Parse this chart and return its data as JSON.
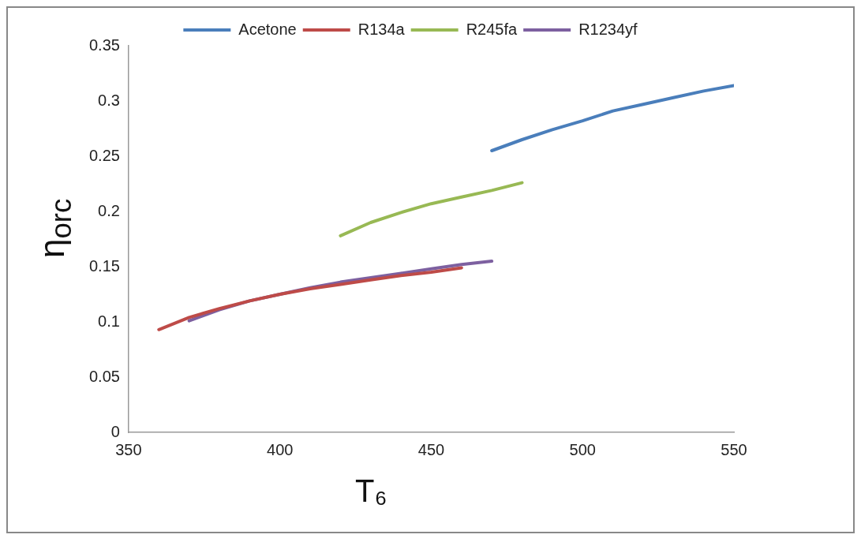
{
  "chart_data": {
    "type": "line",
    "xlabel": "T₆",
    "ylabel": "η$_{orc}$",
    "xlim": [
      350,
      550
    ],
    "xticks": [
      350,
      400,
      450,
      500,
      550
    ],
    "ylim": [
      0,
      0.35
    ],
    "yticks": [
      0,
      0.05,
      0.1,
      0.15,
      0.2,
      0.25,
      0.3,
      0.35
    ],
    "grid": false,
    "legend": "top",
    "marker": "none",
    "line_style": "solid",
    "series": [
      {
        "name": "Acetone",
        "color": "#4a7ebb",
        "x": [
          470,
          480,
          490,
          500,
          510,
          520,
          530,
          540,
          550
        ],
        "values": [
          0.255,
          0.265,
          0.274,
          0.282,
          0.291,
          0.297,
          0.303,
          0.309,
          0.314
        ]
      },
      {
        "name": "R134a",
        "color": "#be4b48",
        "x": [
          360,
          370,
          380,
          390,
          400,
          410,
          420,
          430,
          440,
          450,
          460
        ],
        "values": [
          0.093,
          0.104,
          0.112,
          0.119,
          0.125,
          0.13,
          0.134,
          0.138,
          0.142,
          0.145,
          0.149
        ]
      },
      {
        "name": "R245fa",
        "color": "#98b954",
        "x": [
          420,
          430,
          440,
          450,
          460,
          470,
          480
        ],
        "values": [
          0.178,
          0.19,
          0.199,
          0.207,
          0.213,
          0.219,
          0.226
        ]
      },
      {
        "name": "R1234yf",
        "color": "#7d60a0",
        "x": [
          370,
          380,
          390,
          400,
          410,
          420,
          430,
          440,
          450,
          460,
          470
        ],
        "values": [
          0.101,
          0.111,
          0.119,
          0.125,
          0.131,
          0.136,
          0.14,
          0.144,
          0.148,
          0.152,
          0.155
        ]
      }
    ]
  }
}
